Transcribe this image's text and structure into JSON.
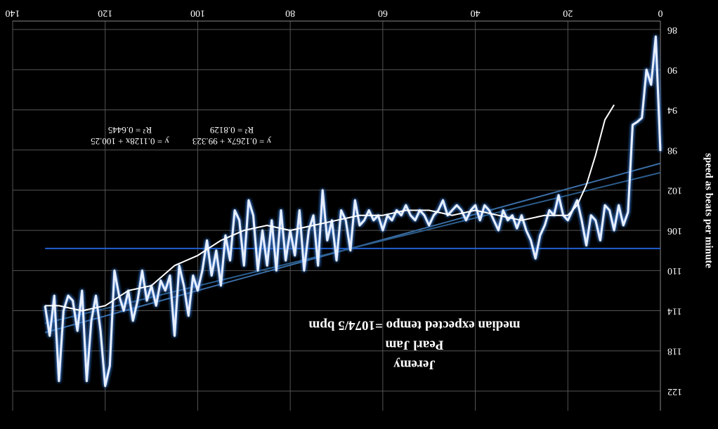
{
  "chart_data": {
    "type": "line",
    "title": "Jeremy",
    "subtitle": "Pearl Jam",
    "caption": "median expected tempo =1074/5 bpm",
    "y_label": "speed as beats per minute",
    "annotations": [
      "y = 0.1267x + 99.323",
      "R² = 0.8129",
      "y = 0.1128x + 100.25",
      "R² = 0.6445"
    ],
    "xlim": [
      0,
      140
    ],
    "xticks": [
      0,
      20,
      40,
      60,
      80,
      100,
      120,
      140
    ],
    "ylim": [
      86,
      122
    ],
    "yticks": [
      86,
      90,
      94,
      98,
      102,
      106,
      110,
      114,
      118,
      122
    ],
    "grid": true,
    "series": [
      {
        "color": "#1f5fd0",
        "x": [
          0,
          133
        ],
        "values": [
          107.8,
          107.8
        ]
      },
      {
        "color": "#3a6ea5",
        "x": [
          0,
          133
        ],
        "values": [
          99.323,
          116.17
        ]
      },
      {
        "color": "#2c5d8c",
        "x": [
          0,
          133
        ],
        "values": [
          100.25,
          115.25
        ]
      },
      {
        "color": "#e6efff",
        "x": [
          0,
          1,
          2,
          3,
          4,
          5,
          6,
          7,
          8,
          9,
          10,
          11,
          12,
          13,
          14,
          15,
          16,
          17,
          18,
          19,
          20,
          21,
          22,
          23,
          24,
          25,
          26,
          27,
          28,
          29,
          30,
          31,
          32,
          33,
          34,
          35,
          36,
          37,
          38,
          39,
          40,
          41,
          42,
          43,
          44,
          45,
          46,
          47,
          48,
          49,
          50,
          51,
          52,
          53,
          54,
          55,
          56,
          57,
          58,
          59,
          60,
          61,
          62,
          63,
          64,
          65,
          66,
          67,
          68,
          69,
          70,
          71,
          72,
          73,
          74,
          75,
          76,
          77,
          78,
          79,
          80,
          81,
          82,
          83,
          84,
          85,
          86,
          87,
          88,
          89,
          90,
          91,
          92,
          93,
          94,
          95,
          96,
          97,
          98,
          99,
          100,
          101,
          102,
          103,
          104,
          105,
          106,
          107,
          108,
          109,
          110,
          111,
          112,
          113,
          114,
          115,
          116,
          117,
          118,
          119,
          120,
          121,
          122,
          123,
          124,
          125,
          126,
          127,
          128,
          129,
          130,
          131,
          132,
          133
        ],
        "values": [
          98.1,
          86.7,
          91.5,
          90,
          94.8,
          95.2,
          95.5,
          104.2,
          105.5,
          103.5,
          106,
          104,
          103.5,
          107,
          105,
          104.5,
          107.5,
          105,
          103,
          104,
          105,
          104.5,
          102.5,
          104.5,
          104,
          105.5,
          106.5,
          108.8,
          107,
          106,
          104.5,
          105.8,
          104.5,
          105,
          104,
          106,
          105,
          104,
          103.5,
          105,
          103.5,
          104,
          105,
          104,
          103.5,
          104,
          104.5,
          103,
          104,
          104.5,
          105.5,
          104.5,
          104,
          105,
          104.5,
          103.5,
          104.5,
          104,
          105,
          104.5,
          106,
          104.5,
          105,
          104,
          105,
          105.5,
          103,
          108,
          105,
          104,
          109,
          105,
          107,
          102,
          109.5,
          104.5,
          106,
          110,
          104,
          108.5,
          106,
          109,
          104,
          110,
          105,
          109.5,
          106,
          110,
          104.5,
          103,
          109.5,
          105,
          104,
          109,
          106.5,
          111.5,
          108,
          110.5,
          107,
          110,
          112,
          110.5,
          114.5,
          111.5,
          109.5,
          116.5,
          110.5,
          112,
          111,
          113.5,
          111.5,
          113,
          110,
          113,
          115,
          112,
          114,
          112.5,
          110,
          119.5,
          121.5,
          116,
          112.5,
          115,
          121,
          112,
          116,
          113,
          112.5,
          114,
          121,
          112.5,
          116.5,
          113.5
        ]
      },
      {
        "color": "#ffffff",
        "x": [
          10,
          12,
          14,
          16,
          18,
          20,
          25,
          30,
          35,
          40,
          45,
          50,
          55,
          60,
          65,
          70,
          75,
          80,
          85,
          90,
          95,
          100,
          105,
          110,
          115,
          120,
          125,
          130,
          133
        ],
        "values": [
          93.5,
          95,
          98.5,
          101.5,
          103.5,
          104.5,
          104.5,
          105,
          104.5,
          104,
          104.5,
          104,
          104,
          104.5,
          104.5,
          105,
          105.5,
          106,
          105.5,
          106,
          107,
          108.5,
          109.5,
          111.5,
          112,
          113.5,
          114,
          113.5,
          113.5
        ]
      }
    ]
  }
}
